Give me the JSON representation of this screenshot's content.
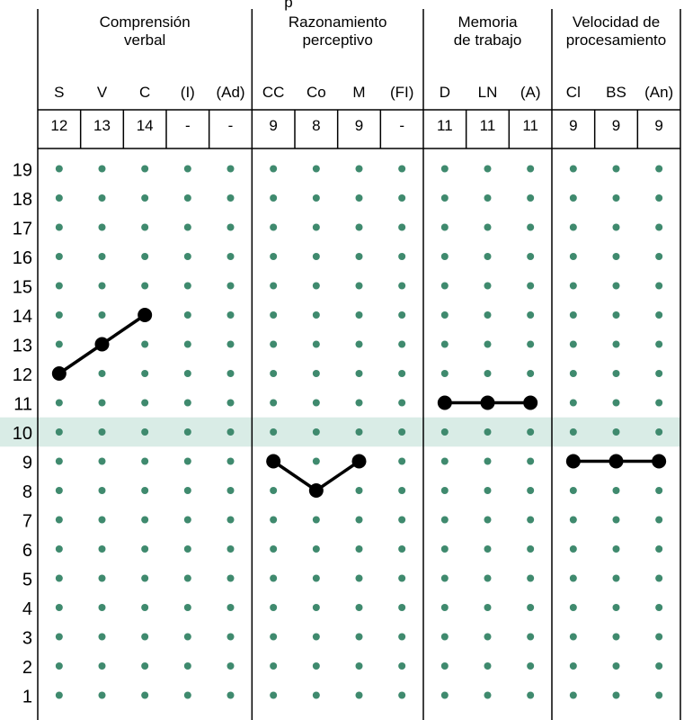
{
  "chart_data": {
    "type": "line",
    "colors": {
      "dot": "#3f8a6e",
      "mean_band": "#d9ece6",
      "title_fragment": "#1f6fd1",
      "line": "#000000",
      "border": "#000000"
    },
    "title_fragment": "p",
    "y_scale": {
      "min": 1,
      "max": 19,
      "highlighted_row": 10
    },
    "y_ticks": [
      "19",
      "18",
      "17",
      "16",
      "15",
      "14",
      "13",
      "12",
      "11",
      "10",
      "9",
      "8",
      "7",
      "6",
      "5",
      "4",
      "3",
      "2",
      "1"
    ],
    "groups": [
      {
        "title_lines": [
          "Comprensión",
          "verbal"
        ],
        "subtests": [
          {
            "abbr": "S",
            "score": "12",
            "value": 12,
            "connected": true
          },
          {
            "abbr": "V",
            "score": "13",
            "value": 13,
            "connected": true
          },
          {
            "abbr": "C",
            "score": "14",
            "value": 14,
            "connected": true
          },
          {
            "abbr": "(I)",
            "score": "-",
            "value": null,
            "connected": false
          },
          {
            "abbr": "(Ad)",
            "score": "-",
            "value": null,
            "connected": false
          }
        ]
      },
      {
        "title_lines": [
          "Razonamiento",
          "perceptivo"
        ],
        "subtests": [
          {
            "abbr": "CC",
            "score": "9",
            "value": 9,
            "connected": true
          },
          {
            "abbr": "Co",
            "score": "8",
            "value": 8,
            "connected": true
          },
          {
            "abbr": "M",
            "score": "9",
            "value": 9,
            "connected": true
          },
          {
            "abbr": "(FI)",
            "score": "-",
            "value": null,
            "connected": false
          }
        ]
      },
      {
        "title_lines": [
          "Memoria",
          "de trabajo"
        ],
        "subtests": [
          {
            "abbr": "D",
            "score": "11",
            "value": 11,
            "connected": true
          },
          {
            "abbr": "LN",
            "score": "11",
            "value": 11,
            "connected": true
          },
          {
            "abbr": "(A)",
            "score": "11",
            "value": 11,
            "connected": true
          }
        ]
      },
      {
        "title_lines": [
          "Velocidad de",
          "procesamiento"
        ],
        "subtests": [
          {
            "abbr": "Cl",
            "score": "9",
            "value": 9,
            "connected": true
          },
          {
            "abbr": "BS",
            "score": "9",
            "value": 9,
            "connected": true
          },
          {
            "abbr": "(An)",
            "score": "9",
            "value": 9,
            "connected": true
          }
        ]
      }
    ]
  }
}
